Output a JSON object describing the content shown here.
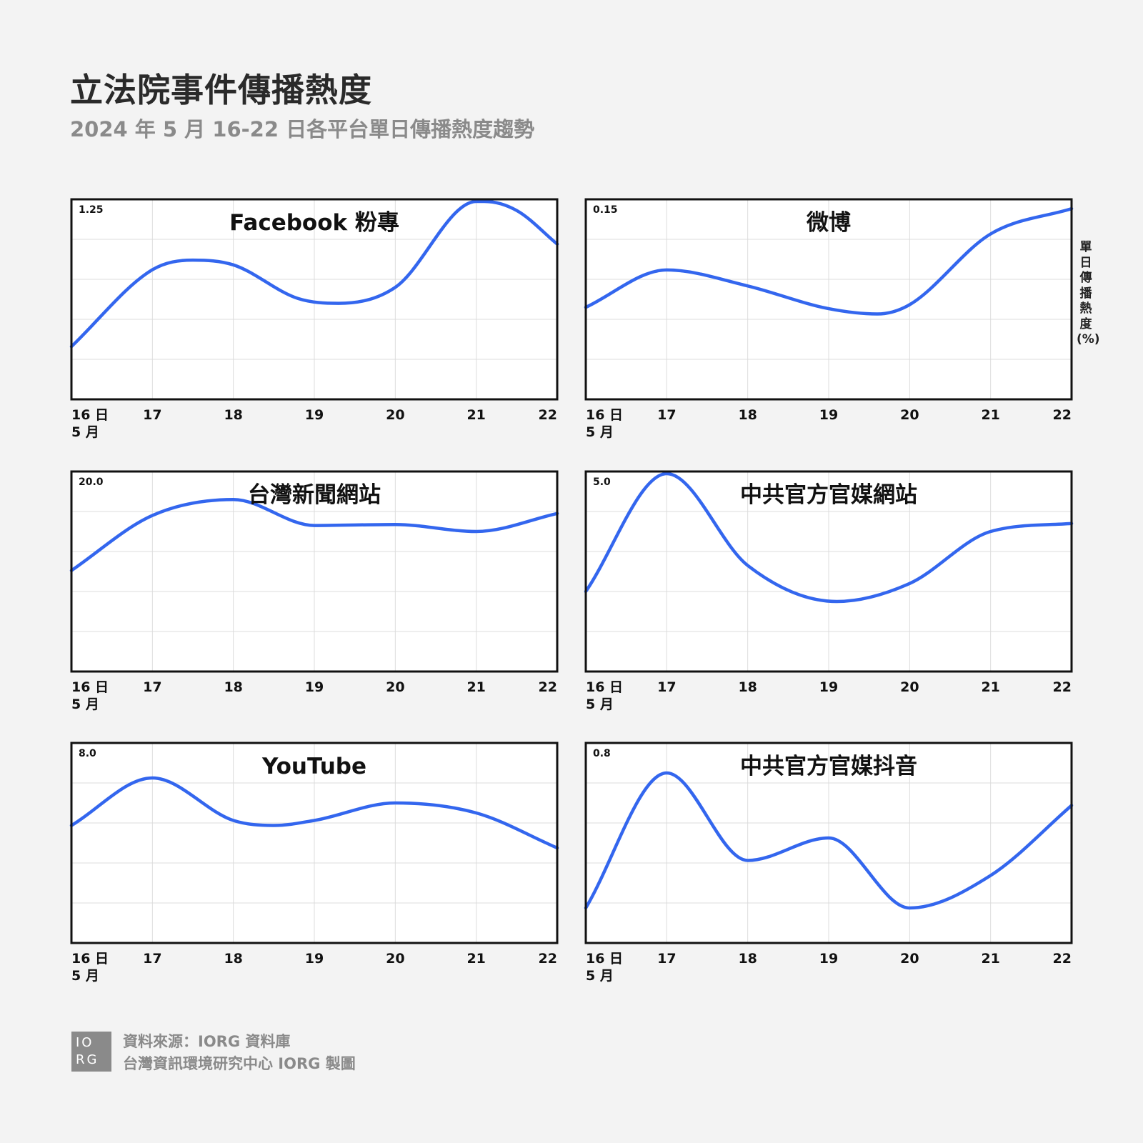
{
  "title": "立法院事件傳播熱度",
  "subtitle": "2024 年 5 月 16-22 日各平台單日傳播熱度趨勢",
  "ylabel": "單日傳播熱度(%)",
  "colors": {
    "line": "#3366ee",
    "grid": "#dcdcdc",
    "frame": "#111111",
    "background": "#f3f3f3"
  },
  "footer": {
    "logo_top": "IO",
    "logo_bottom": "RG",
    "source": "資料來源：IORG 資料庫",
    "credit": "台灣資訊環境研究中心 IORG 製圖"
  },
  "chart_data": [
    {
      "type": "line",
      "title": "Facebook 粉專",
      "x_ticks": [
        "16 日",
        "17",
        "18",
        "19",
        "20",
        "21",
        "22"
      ],
      "x_sub": "5 月",
      "ymax_label": "1.25",
      "ylim": [
        0,
        1.25
      ],
      "x": [
        16,
        17,
        17.5,
        18,
        18.8,
        19.3,
        20,
        21,
        21.1,
        21.5,
        22
      ],
      "y": [
        0.33,
        0.81,
        0.87,
        0.84,
        0.63,
        0.6,
        0.7,
        1.24,
        1.25,
        1.18,
        0.97
      ]
    },
    {
      "type": "line",
      "title": "微博",
      "x_ticks": [
        "16 日",
        "17",
        "18",
        "19",
        "20",
        "21",
        "22"
      ],
      "x_sub": "5 月",
      "ymax_label": "0.15",
      "ylim": [
        0,
        0.15
      ],
      "x": [
        16,
        17,
        18,
        19,
        19.6,
        20,
        21,
        22
      ],
      "y": [
        0.069,
        0.097,
        0.085,
        0.068,
        0.064,
        0.071,
        0.124,
        0.143
      ]
    },
    {
      "type": "line",
      "title": "台灣新聞網站",
      "x_ticks": [
        "16 日",
        "17",
        "18",
        "19",
        "20",
        "21",
        "22"
      ],
      "x_sub": "5 月",
      "ymax_label": "20.0",
      "ylim": [
        0,
        20
      ],
      "x": [
        16,
        17,
        18,
        19,
        20,
        21,
        22
      ],
      "y": [
        10.1,
        15.6,
        17.2,
        14.6,
        14.7,
        14.0,
        15.8
      ]
    },
    {
      "type": "line",
      "title": "中共官方官媒網站",
      "x_ticks": [
        "16 日",
        "17",
        "18",
        "19",
        "20",
        "21",
        "22"
      ],
      "x_sub": "5 月",
      "ymax_label": "5.0",
      "ylim": [
        0,
        5
      ],
      "x": [
        16,
        17,
        18,
        19.1,
        20,
        21,
        22
      ],
      "y": [
        2.0,
        5.0,
        2.65,
        1.75,
        2.2,
        3.5,
        3.7
      ]
    },
    {
      "type": "line",
      "title": "YouTube",
      "x_ticks": [
        "16 日",
        "17",
        "18",
        "19",
        "20",
        "21",
        "22"
      ],
      "x_sub": "5 月",
      "ymax_label": "8.0",
      "ylim": [
        0,
        8
      ],
      "x": [
        16,
        17,
        18,
        18.5,
        19,
        20,
        21,
        22
      ],
      "y": [
        4.7,
        6.6,
        4.9,
        4.7,
        4.9,
        5.6,
        5.2,
        3.8
      ]
    },
    {
      "type": "line",
      "title": "中共官方官媒抖音",
      "x_ticks": [
        "16 日",
        "17",
        "18",
        "19",
        "20",
        "21",
        "22"
      ],
      "x_sub": "5 月",
      "ymax_label": "0.8",
      "ylim": [
        0,
        0.8
      ],
      "x": [
        16,
        17,
        18,
        19,
        20,
        21,
        22
      ],
      "y": [
        0.14,
        0.68,
        0.33,
        0.42,
        0.14,
        0.27,
        0.55
      ]
    }
  ]
}
